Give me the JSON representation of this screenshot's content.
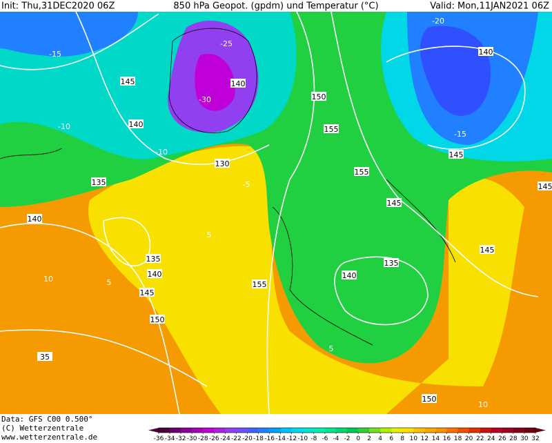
{
  "header": {
    "init": "Init: Thu,31DEC2020 06Z",
    "title": "850 hPa Geopot. (gpdm) und Temperatur (°C)",
    "valid": "Valid: Mon,11JAN2021 06Z"
  },
  "height_labels": [
    "140",
    "145",
    "140",
    "135",
    "130",
    "150",
    "155",
    "155",
    "145",
    "140",
    "135",
    "140",
    "145",
    "150",
    "155",
    "140",
    "135",
    "145",
    "140",
    "145",
    "150",
    "145",
    "35"
  ],
  "temperature_labels": [
    "-25",
    "-30",
    "-20",
    "-15",
    "-10",
    "-5",
    "5",
    "10",
    "5",
    "5",
    "10",
    "-15",
    "-10"
  ],
  "footer": {
    "data": "Data: GFS C00 0.500°",
    "copyright": "(C) Wetterzentrale",
    "url": "www.wetterzentrale.de"
  },
  "colorbar": {
    "ticks": [
      -36,
      -34,
      -32,
      -30,
      -28,
      -26,
      -24,
      -22,
      -20,
      -18,
      -16,
      -14,
      -12,
      -10,
      -8,
      -6,
      -4,
      -2,
      0,
      2,
      4,
      6,
      8,
      10,
      12,
      14,
      16,
      18,
      20,
      22,
      24,
      26,
      28,
      30,
      32
    ],
    "colors": [
      "#4b0040",
      "#6a0070",
      "#8a0099",
      "#a600b8",
      "#c000d8",
      "#b020e0",
      "#9040f0",
      "#7050ff",
      "#4060ff",
      "#2080ff",
      "#00a0ff",
      "#00c0ff",
      "#00d8f0",
      "#00e8d0",
      "#00f0b0",
      "#00e890",
      "#00d870",
      "#00c850",
      "#30d030",
      "#70e020",
      "#b0f000",
      "#e8f000",
      "#ffe000",
      "#ffc000",
      "#ffa800",
      "#ff9000",
      "#ff7000",
      "#f05000",
      "#e03000",
      "#d01010",
      "#b80020",
      "#a00020",
      "#880018",
      "#700010"
    ]
  }
}
